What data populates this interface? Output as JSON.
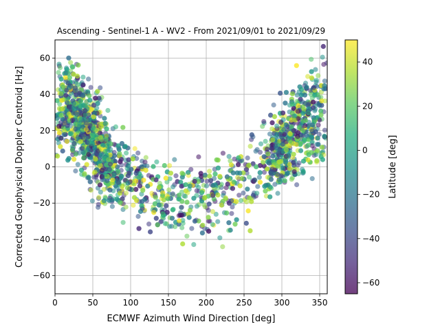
{
  "chart_data": {
    "type": "scatter",
    "title": "Ascending - Sentinel-1 A - WV2 - From 2021/09/01 to 2021/09/29",
    "xlabel": "ECMWF Azimuth Wind Direction [deg]",
    "ylabel": "Corrected Geophysical Doppler Centroid [Hz]",
    "xlim": [
      0,
      360
    ],
    "ylim": [
      -70,
      70
    ],
    "xticks": [
      0,
      50,
      100,
      150,
      200,
      250,
      300,
      350
    ],
    "yticks": [
      -60,
      -40,
      -20,
      0,
      20,
      40,
      60
    ],
    "grid": true,
    "colorbar": {
      "label": "Latitude [deg]",
      "range": [
        -65,
        50
      ],
      "ticks": [
        -60,
        -40,
        -20,
        0,
        20,
        40
      ],
      "colormap": "viridis"
    },
    "point_alpha": 0.55,
    "trend_points": [
      {
        "x": 0,
        "y": 30
      },
      {
        "x": 25,
        "y": 30
      },
      {
        "x": 50,
        "y": 18
      },
      {
        "x": 75,
        "y": 0
      },
      {
        "x": 100,
        "y": -8
      },
      {
        "x": 125,
        "y": -15
      },
      {
        "x": 150,
        "y": -18
      },
      {
        "x": 175,
        "y": -18
      },
      {
        "x": 200,
        "y": -17
      },
      {
        "x": 225,
        "y": -14
      },
      {
        "x": 250,
        "y": -10
      },
      {
        "x": 275,
        "y": 0
      },
      {
        "x": 300,
        "y": 12
      },
      {
        "x": 325,
        "y": 22
      },
      {
        "x": 350,
        "y": 28
      },
      {
        "x": 360,
        "y": 30
      }
    ],
    "point_count": 2600
  }
}
